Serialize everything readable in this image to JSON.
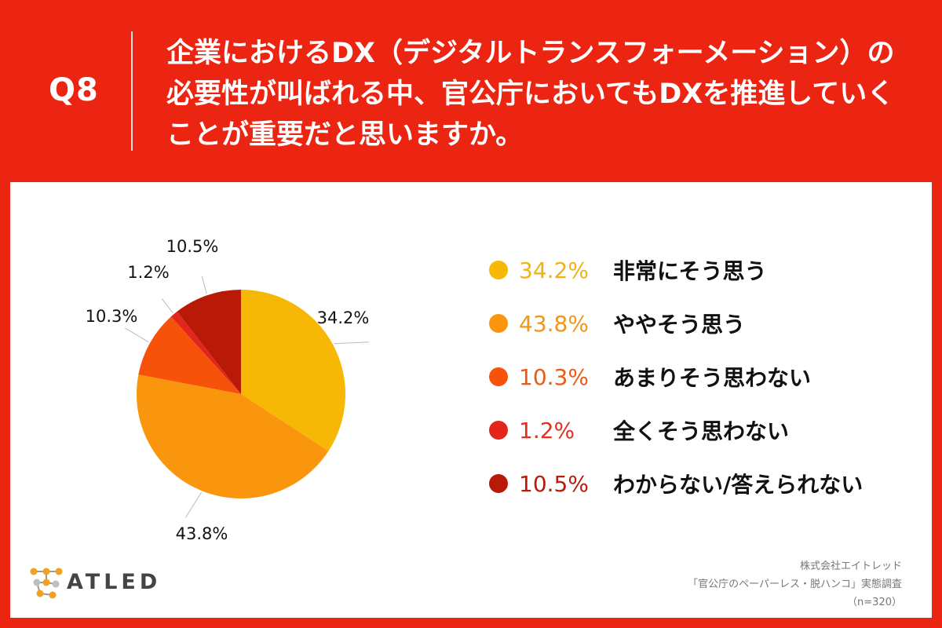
{
  "header": {
    "qnum": "Q8",
    "question": "企業におけるDX（デジタルトランスフォーメーション）の\n必要性が叫ばれる中、官公庁においてもDXを推進していく\nことが重要だと思いますか。"
  },
  "colors": {
    "background": "#eb2512",
    "panel": "#ffffff"
  },
  "chart_data": {
    "type": "pie",
    "n_label": "(n=320)",
    "slices": [
      {
        "label": "非常にそう思う",
        "value": 34.2,
        "pct": "34.2%",
        "color": "#f6b805",
        "text_color": "#f1b214"
      },
      {
        "label": "ややそう思う",
        "value": 43.8,
        "pct": "43.8%",
        "color": "#f9960d",
        "text_color": "#f0961a"
      },
      {
        "label": "あまりそう思わない",
        "value": 10.3,
        "pct": "10.3%",
        "color": "#f65209",
        "text_color": "#ed5a17"
      },
      {
        "label": "全くそう思わない",
        "value": 1.2,
        "pct": "1.2%",
        "color": "#e2261c",
        "text_color": "#e23020"
      },
      {
        "label": "わからない/答えられない",
        "value": 10.5,
        "pct": "10.5%",
        "color": "#b91a08",
        "text_color": "#b81c0b"
      }
    ]
  },
  "logo": {
    "text": "ATLED",
    "icon": "molecule-network-icon"
  },
  "credit": {
    "company": "株式会社エイトレッド",
    "survey": "「官公庁のペーパーレス・脱ハンコ」実態調査",
    "sample": "（n=320）"
  }
}
